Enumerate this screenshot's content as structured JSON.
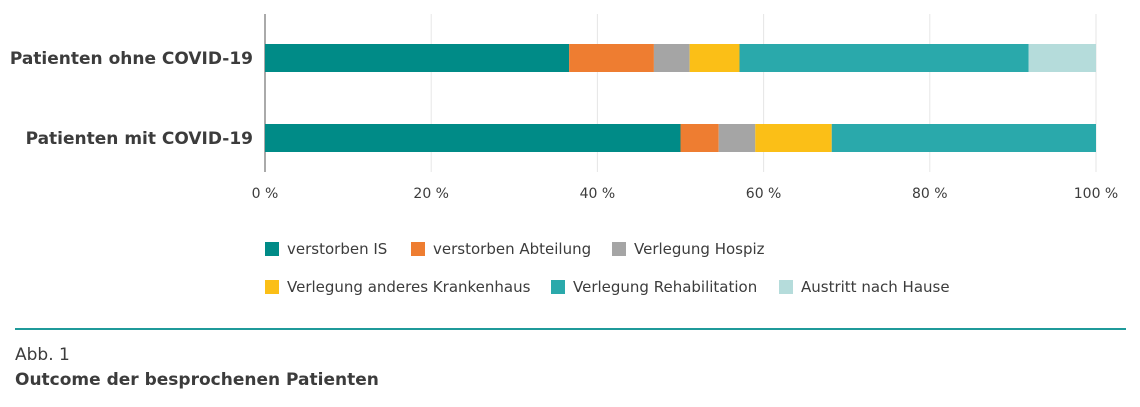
{
  "chart_data": {
    "type": "bar",
    "orientation": "horizontal",
    "stacked": true,
    "categories": [
      "Patienten ohne COVID-19",
      "Patienten mit COVID-19"
    ],
    "xlim": [
      0,
      100
    ],
    "xticks": [
      "0 %",
      "20 %",
      "40 %",
      "60 %",
      "80 %",
      "100 %"
    ],
    "grid": true,
    "legend_position": "bottom",
    "series": [
      {
        "name": "verstorben IS",
        "color": "#008b87",
        "values": [
          36.6,
          50.0
        ]
      },
      {
        "name": "verstorben Abteilung",
        "color": "#ee7d31",
        "values": [
          10.2,
          4.6
        ]
      },
      {
        "name": "Verlegung Hospiz",
        "color": "#a5a5a5",
        "values": [
          4.3,
          4.4
        ]
      },
      {
        "name": "Verlegung anderes Krankenhaus",
        "color": "#fbbf17",
        "values": [
          6.0,
          9.2
        ]
      },
      {
        "name": "Verlegung Rehabilitation",
        "color": "#2aa9ab",
        "values": [
          34.8,
          31.8
        ]
      },
      {
        "name": "Austritt nach Hause",
        "color": "#b5dcdb",
        "values": [
          8.1,
          0
        ]
      }
    ]
  },
  "caption": {
    "label": "Abb. 1",
    "title": "Outcome der besprochenen Patienten"
  }
}
